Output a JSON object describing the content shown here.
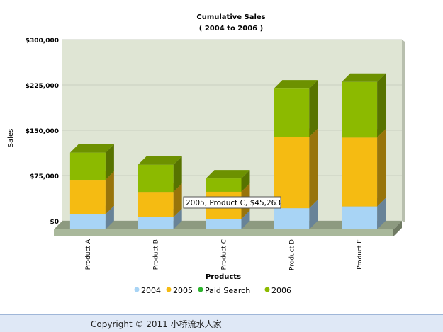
{
  "chart_data": {
    "type": "bar",
    "stacked": true,
    "title": "Cumulative Sales",
    "subtitle": "( 2004 to 2006 )",
    "xlabel": "Products",
    "ylabel": "Sales",
    "categories": [
      "Product A",
      "Product B",
      "Product C",
      "Product D",
      "Product E"
    ],
    "ylim": [
      0,
      300000
    ],
    "yticks": [
      "$0",
      "$75,000",
      "$150,000",
      "$225,000",
      "$300,000"
    ],
    "ytick_values": [
      0,
      75000,
      150000,
      225000,
      300000
    ],
    "grid": true,
    "legend_position": "bottom",
    "series": [
      {
        "name": "2004",
        "color": "#a8d4f5",
        "values": [
          25000,
          20000,
          17000,
          35000,
          38000
        ]
      },
      {
        "name": "2005",
        "color": "#f5bb12",
        "values": [
          57000,
          42000,
          45263,
          118000,
          114000
        ]
      },
      {
        "name": "Paid Search",
        "color": "#2fb52f",
        "values": [
          0,
          0,
          0,
          0,
          0
        ]
      },
      {
        "name": "2006",
        "color": "#8cba00",
        "values": [
          45000,
          45000,
          22000,
          80000,
          92000
        ]
      }
    ],
    "tooltip": "2005, Product C, $45,263"
  },
  "footer": {
    "copyright": "Copyright © 2011 小桥流水人家"
  }
}
